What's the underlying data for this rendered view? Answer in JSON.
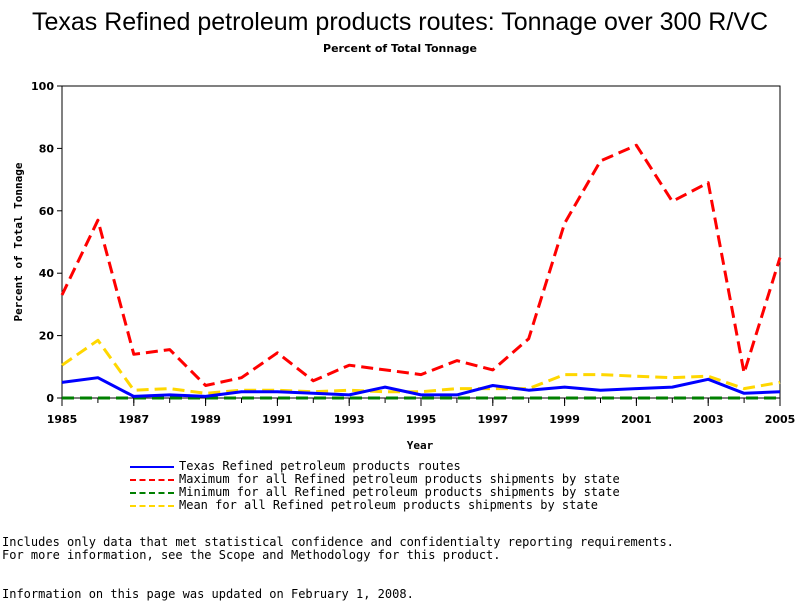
{
  "chart_data": {
    "type": "line",
    "title": "Texas Refined petroleum products routes: Tonnage over 300 R/VC",
    "subtitle": "Percent of Total Tonnage",
    "xlabel": "Year",
    "ylabel": "Percent of Total Tonnage",
    "xlim": [
      1985,
      2005
    ],
    "ylim": [
      0,
      100
    ],
    "xticks": [
      "1985",
      "1987",
      "1989",
      "1991",
      "1993",
      "1995",
      "1997",
      "1999",
      "2001",
      "2003",
      "2005"
    ],
    "yticks": [
      "0",
      "20",
      "40",
      "60",
      "80",
      "100"
    ],
    "x": [
      1985,
      1986,
      1987,
      1988,
      1989,
      1990,
      1991,
      1992,
      1993,
      1994,
      1995,
      1996,
      1997,
      1998,
      1999,
      2000,
      2001,
      2002,
      2003,
      2004,
      2005
    ],
    "grid": false,
    "legend_position": "bottom",
    "series": [
      {
        "name": "Texas Refined petroleum products routes",
        "color": "#0000ff",
        "style": "solid",
        "values": [
          5,
          6.5,
          0.5,
          1,
          0.5,
          2,
          2,
          1.5,
          1,
          3.5,
          1,
          1,
          4,
          2.5,
          3.5,
          2.5,
          3,
          3.5,
          6,
          1.5,
          2
        ]
      },
      {
        "name": "Maximum for all Refined petroleum products shipments by state",
        "color": "#ff0000",
        "style": "dashed",
        "values": [
          33,
          57,
          14,
          15.5,
          4,
          6.5,
          14.5,
          5.5,
          10.5,
          9,
          7.5,
          12,
          9,
          19,
          56,
          76,
          81,
          63,
          69,
          8,
          45
        ]
      },
      {
        "name": "Minimum for all Refined petroleum products shipments by state",
        "color": "#008000",
        "style": "dashed",
        "values": [
          0,
          0,
          0,
          0,
          0,
          0,
          0,
          0,
          0,
          0,
          0,
          0,
          0,
          0,
          0,
          0,
          0,
          0,
          0,
          0,
          0
        ]
      },
      {
        "name": "Mean for all Refined petroleum products shipments by state",
        "color": "#ffd700",
        "style": "dashed",
        "values": [
          10.5,
          18.5,
          2.5,
          3,
          1.5,
          2.5,
          2.5,
          2,
          2.5,
          2,
          2,
          3,
          3,
          3,
          7.5,
          7.5,
          7,
          6.5,
          7,
          3,
          5
        ]
      }
    ]
  },
  "notes": {
    "line1": "Includes only data that met statistical confidence and confidentialty reporting requirements.",
    "line2": "For more information, see the Scope and Methodology for this product."
  },
  "updated": "Information on this page was updated on February 1, 2008."
}
